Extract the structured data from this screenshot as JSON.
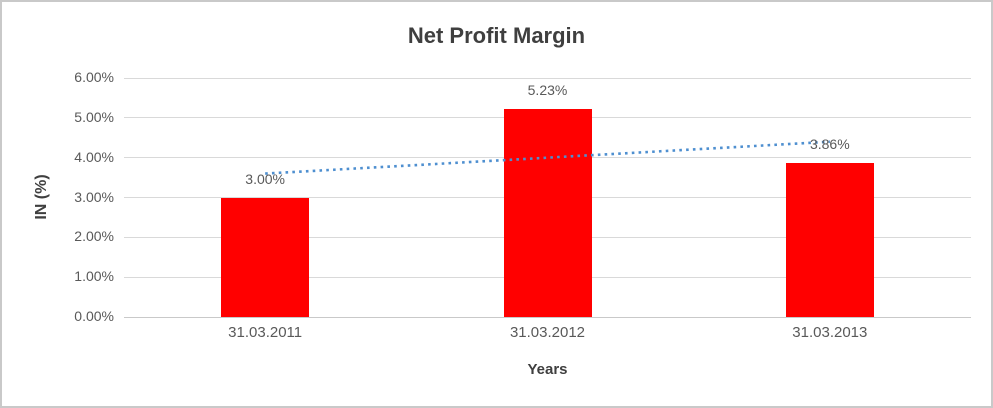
{
  "chart_data": {
    "type": "bar",
    "title": "Net Profit Margin",
    "xlabel": "Years",
    "ylabel": "IN (%)",
    "categories": [
      "31.03.2011",
      "31.03.2012",
      "31.03.2013"
    ],
    "series": [
      {
        "name": "Net Profit Margin",
        "values": [
          3.0,
          5.23,
          3.86
        ]
      }
    ],
    "data_labels": [
      "3.00%",
      "5.23%",
      "3.86%"
    ],
    "ylim": [
      0,
      6
    ],
    "yticks": [
      0,
      1,
      2,
      3,
      4,
      5,
      6
    ],
    "ytick_labels": [
      "0.00%",
      "1.00%",
      "2.00%",
      "3.00%",
      "4.00%",
      "5.00%",
      "6.00%"
    ],
    "grid": true,
    "legend": "none",
    "trendline": {
      "type": "linear",
      "style": "dotted",
      "y_start": 3.6,
      "y_end": 4.4
    },
    "colors": {
      "bar": "#FF0000",
      "trendline": "#4E8FD0",
      "gridline": "#D9D9D9",
      "tick_text": "#595959",
      "title_text": "#3F3F3F",
      "background": "#FFFFFF",
      "border": "#C9C9C9"
    }
  }
}
